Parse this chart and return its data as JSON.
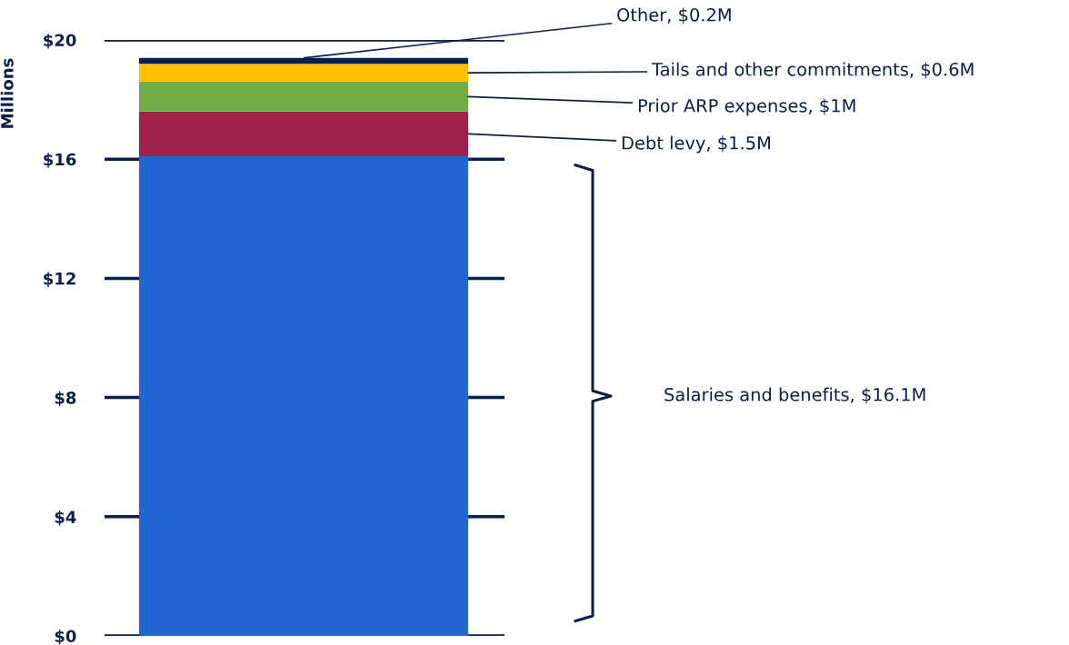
{
  "chart_data": {
    "type": "bar",
    "stacked": true,
    "categories": [
      null
    ],
    "ylabel": "Millions",
    "series": [
      {
        "color": "#2266d3",
        "values": [
          16.1
        ]
      },
      {
        "color": "#a0224a",
        "values": [
          1.5
        ],
        "value_labels": [
          "Debt levy, $1.5M"
        ]
      },
      {
        "color": "#70ad47",
        "values": [
          1
        ],
        "value_labels": [
          "Prior ARP expenses, $1M"
        ]
      },
      {
        "color": "#ffc000",
        "values": [
          0.6
        ],
        "value_labels": [
          "Tails and other commitments, $0.6M"
        ]
      },
      {
        "color": "#0b1f4d",
        "values": [
          0.2
        ],
        "value_labels": [
          "Other, $0.2M"
        ]
      }
    ],
    "ylim": [
      0,
      20
    ],
    "yticks": [
      {
        "value": 0,
        "label": "$0"
      },
      {
        "value": 4,
        "label": "$4"
      },
      {
        "value": 8,
        "label": "$8"
      },
      {
        "value": 12,
        "label": "$12"
      },
      {
        "value": 16,
        "label": "$16"
      },
      {
        "value": 20,
        "label": "$20"
      }
    ],
    "annotations": [
      "Salaries and benefits, $16.1M"
    ],
    "grid": "y",
    "legend": false
  }
}
